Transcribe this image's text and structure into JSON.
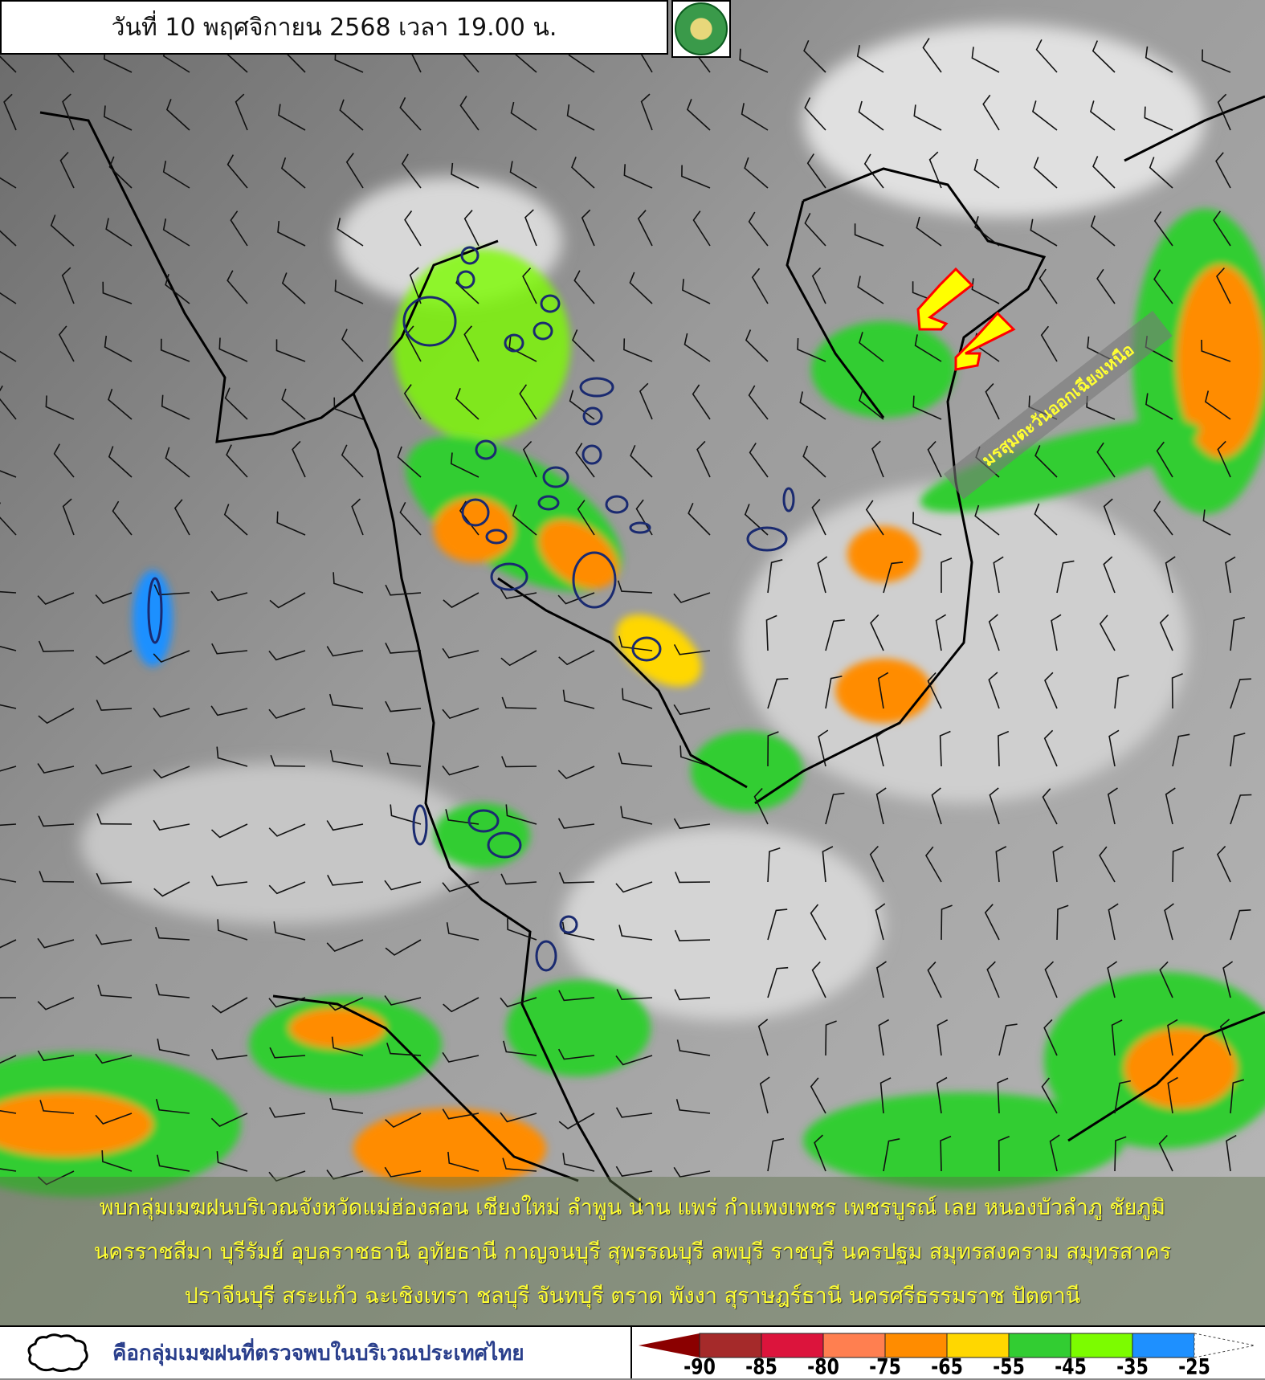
{
  "header": {
    "title": "วันที่ 10 พฤศจิกายน 2568 เวลา 19.00 น.",
    "logo": "กรมอุตุนิยมวิทยา METEOROLOGICAL DEPARTMENT"
  },
  "annotation": {
    "monsoon_label": "มรสุมตะวันออกเฉียงเหนือ",
    "arrow_color": "#ffff00",
    "arrow_outline": "#ff0000"
  },
  "bulletin": {
    "lines": [
      "พบกลุ่มเมฆฝนบริเวณจังหวัดแม่ฮ่องสอน เชียงใหม่ ลำพูน น่าน แพร่ กำแพงเพชร เพชรบูรณ์ เลย หนองบัวลำภู ชัยภูมิ",
      "นครราชสีมา บุรีรัมย์ อุบลราชธานี อุทัยธานี กาญจนบุรี สุพรรณบุรี ลพบุรี ราชบุรี นครปฐม สมุทรสงคราม สมุทรสาคร",
      "ปราจีนบุรี สระแก้ว ฉะเชิงเทรา ชลบุรี จันทบุรี ตราด พังงา สุราษฎร์ธานี นครศรีธรรมราช ปัตตานี"
    ]
  },
  "legend": {
    "cloud_symbol_text": "คือกลุ่มเมฆฝนที่ตรวจพบในบริเวณประเทศไทย",
    "cloud_icon": "cloud-outline-icon",
    "color_scale": [
      "#8b0000",
      "#a52a2a",
      "#dc143c",
      "#ff7f50",
      "#ff8c00",
      "#ffd700",
      "#32cd32",
      "#7cfc00",
      "#1e90ff",
      "#ffffff"
    ],
    "ticks": [
      "-90",
      "-85",
      "-80",
      "-75",
      "-65",
      "-55",
      "-45",
      "-35",
      "-25"
    ]
  }
}
